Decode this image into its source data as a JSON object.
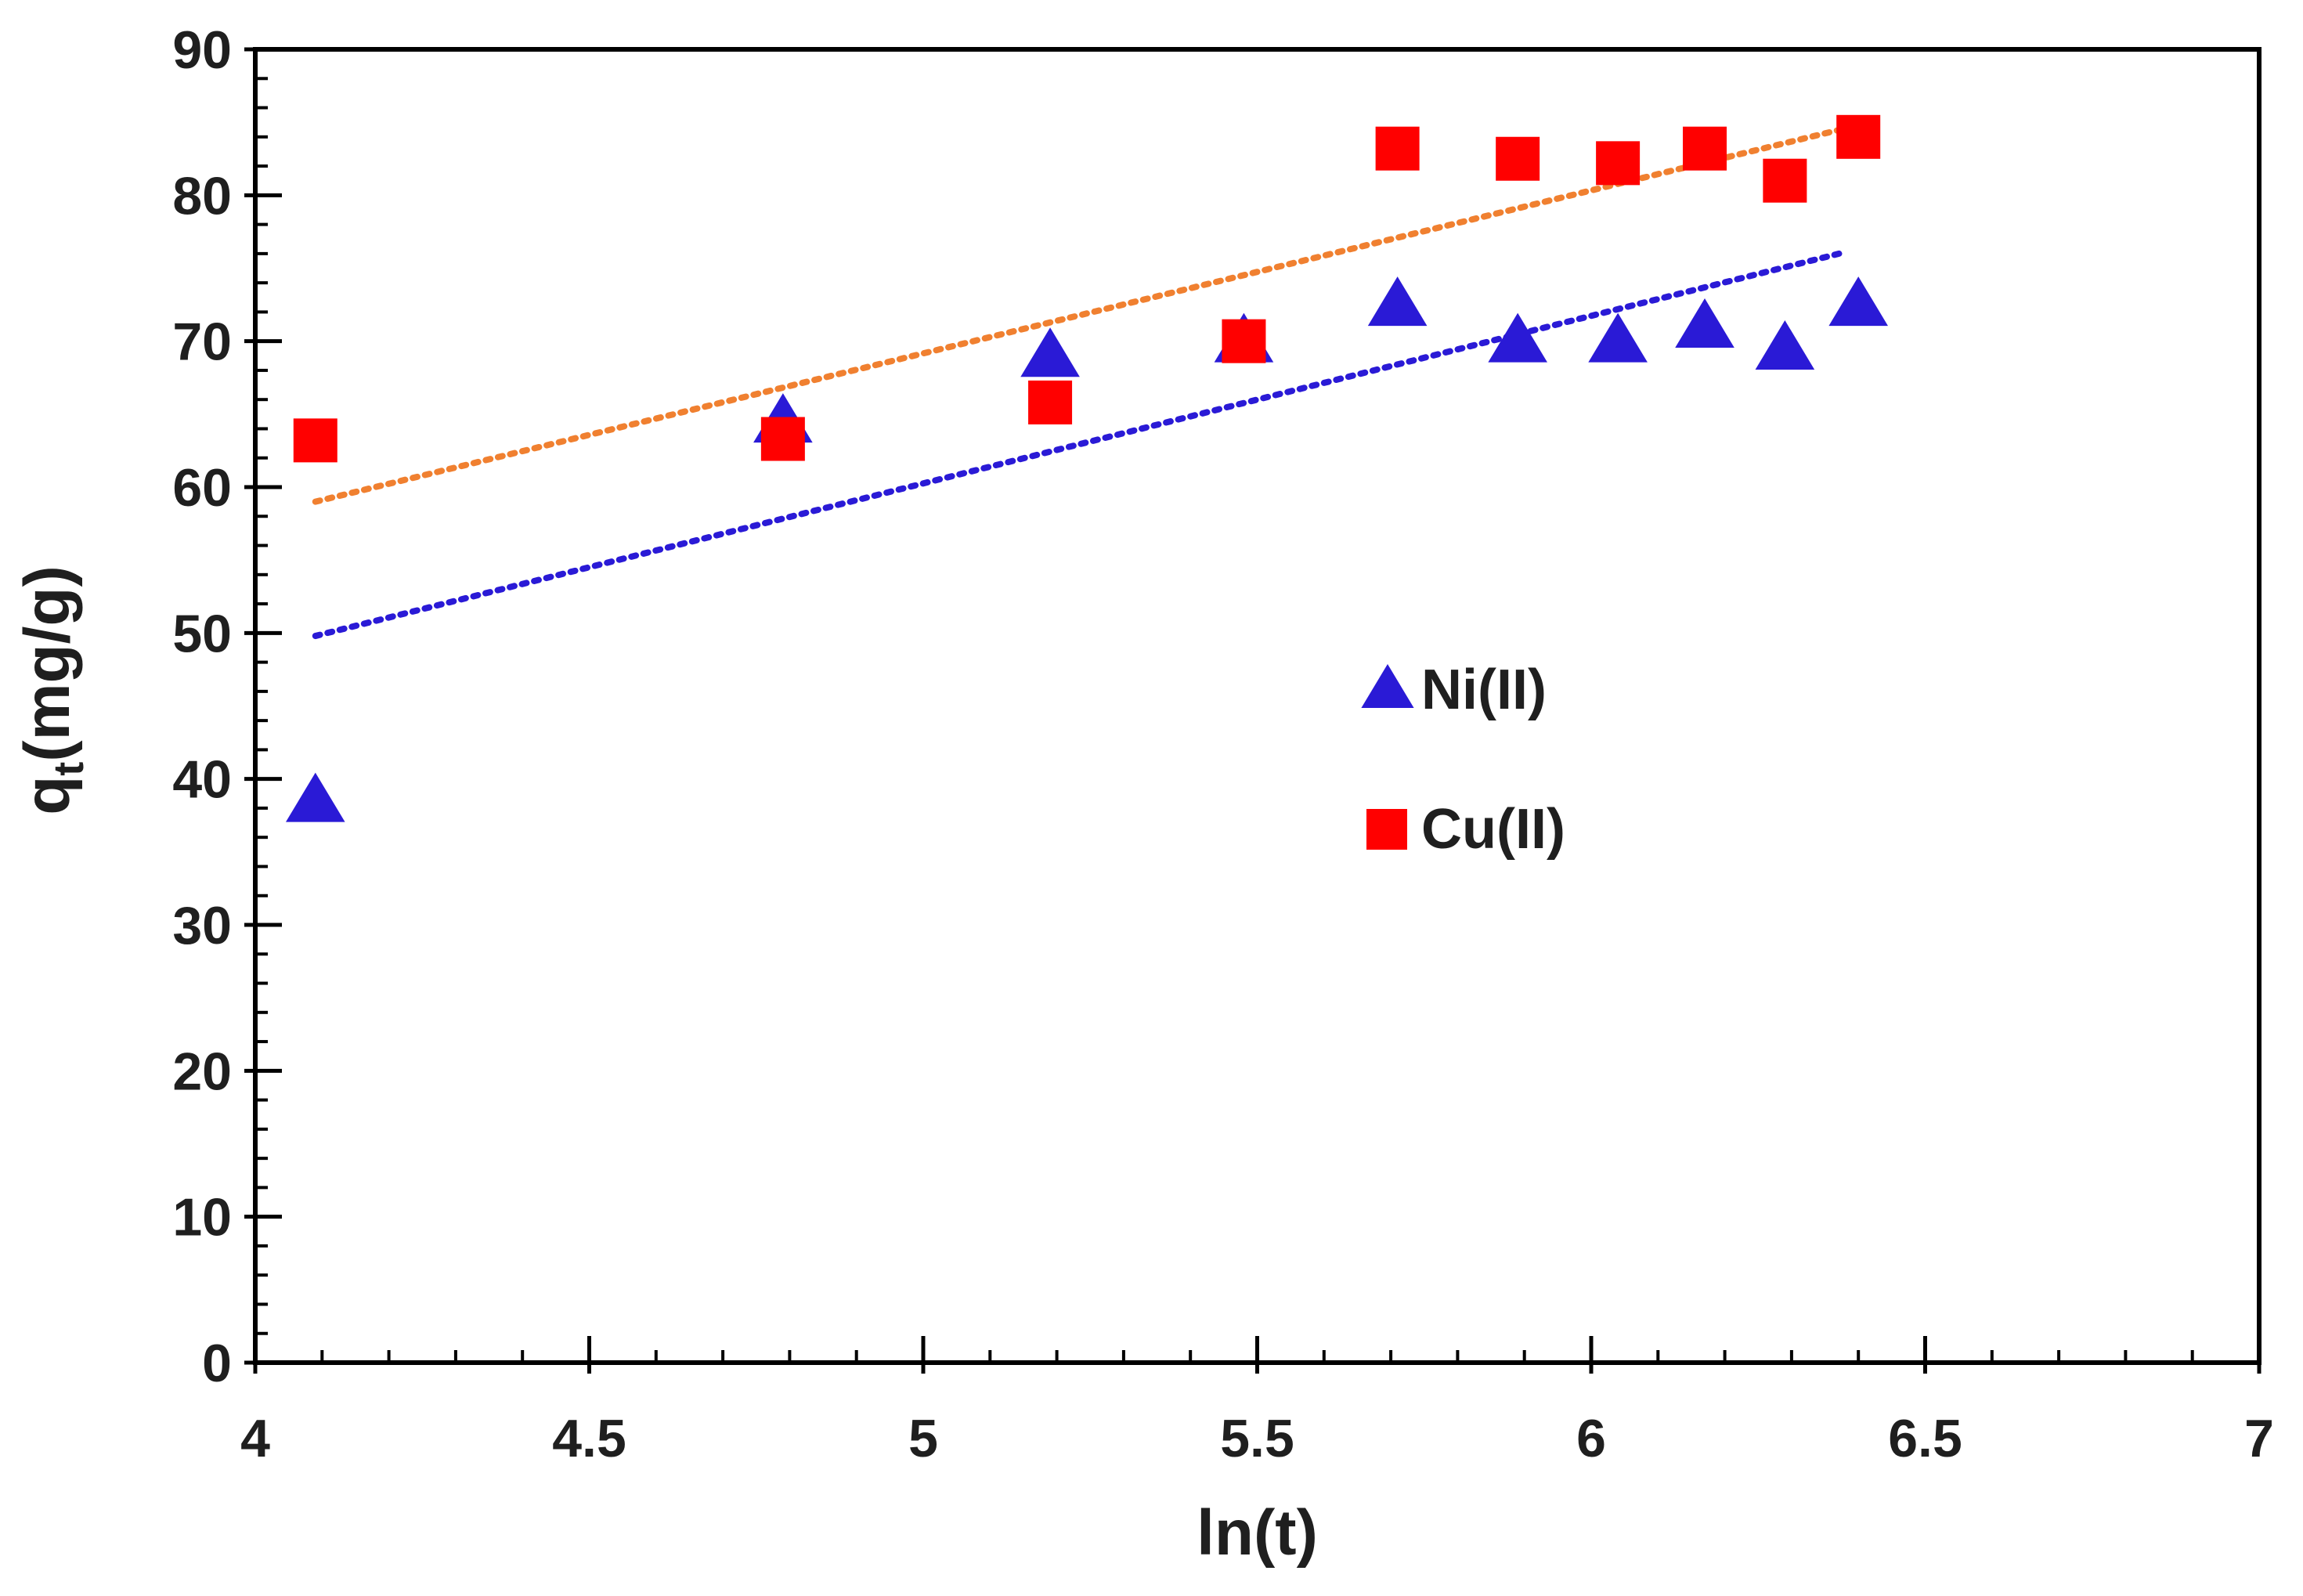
{
  "chart_data": {
    "type": "scatter",
    "title": "",
    "xlabel": "ln(t)",
    "ylabel_main": "q",
    "ylabel_sub": "t",
    "ylabel_rest": "(mg/g)",
    "xlim": [
      4,
      7
    ],
    "ylim": [
      0,
      90
    ],
    "x_ticks": [
      4,
      4.5,
      5,
      5.5,
      6,
      6.5,
      7
    ],
    "x_tick_labels": [
      "4",
      "4.5",
      "5",
      "5.5",
      "6",
      "6.5",
      "7"
    ],
    "y_ticks": [
      0,
      10,
      20,
      30,
      40,
      50,
      60,
      70,
      80,
      90
    ],
    "y_tick_labels": [
      "0",
      "10",
      "20",
      "30",
      "40",
      "50",
      "60",
      "70",
      "80",
      "90"
    ],
    "x_minor_step": 0.1,
    "y_minor_step": 2,
    "grid": false,
    "legend_position": "center-right",
    "series": [
      {
        "name": "Ni(II)",
        "marker": "triangle",
        "color": "#2a1ad6",
        "x": [
          4.09,
          4.79,
          5.19,
          5.48,
          5.71,
          5.89,
          6.04,
          6.17,
          6.29,
          6.4
        ],
        "y": [
          38.5,
          64.5,
          69,
          70,
          72.5,
          70,
          70,
          71,
          69.5,
          72.5
        ],
        "trendline": {
          "color": "#2a1ad6",
          "x": [
            4.09,
            6.38
          ],
          "y": [
            49.8,
            76.1
          ]
        }
      },
      {
        "name": "Cu(II)",
        "marker": "square",
        "color": "#ff0000",
        "x": [
          4.09,
          4.79,
          5.19,
          5.48,
          5.71,
          5.89,
          6.04,
          6.17,
          6.29,
          6.4
        ],
        "y": [
          63.2,
          63.3,
          65.8,
          70,
          83.2,
          82.5,
          82.2,
          83.2,
          81,
          84
        ],
        "trendline": {
          "color": "#f08030",
          "x": [
            4.09,
            6.4
          ],
          "y": [
            59,
            84.8
          ]
        }
      }
    ]
  }
}
